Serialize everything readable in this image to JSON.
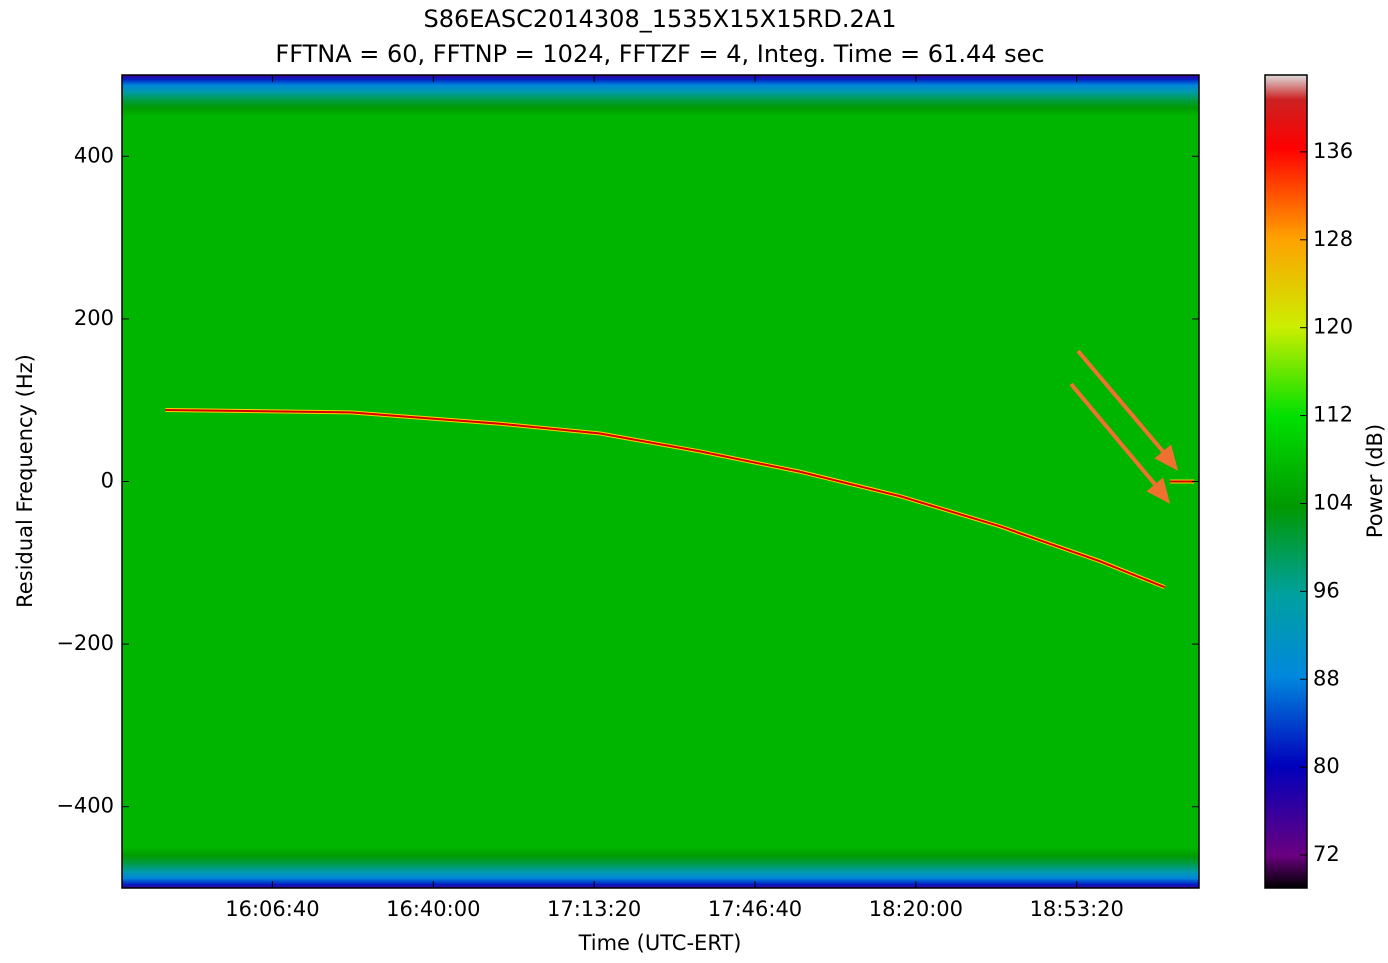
{
  "chart_data": {
    "type": "spectrogram",
    "title": "S86EASC2014308_1535X15X15RD.2A1",
    "subtitle": "FFTNA = 60, FFTNP = 1024, FFTZF = 4, Integ. Time = 61.44 sec",
    "x_label": "Time (UTC-ERT)",
    "y_label": "Residual Frequency (Hz)",
    "colorbar_label": "Power (dB)",
    "xlim": [
      "15:35:30",
      "19:18:40"
    ],
    "xticks": [
      "16:06:40",
      "16:40:00",
      "17:13:20",
      "17:46:40",
      "18:20:00",
      "18:53:20"
    ],
    "ylim": [
      -500,
      500
    ],
    "yticks": [
      {
        "value": -400,
        "label": "−400"
      },
      {
        "value": -200,
        "label": "−200"
      },
      0,
      200,
      400
    ],
    "zlim": [
      69,
      143
    ],
    "zticks": [
      72,
      80,
      88,
      96,
      104,
      112,
      120,
      128,
      136
    ],
    "background_profile": {
      "y": [
        -500,
        -495,
        -488,
        -480,
        -470,
        -460,
        -450,
        450,
        460,
        470,
        480,
        488,
        495,
        500
      ],
      "values": [
        75,
        82,
        88,
        94,
        100,
        104,
        107,
        107,
        104,
        100,
        94,
        88,
        82,
        75
      ]
    },
    "series": [
      {
        "color": "#d40000",
        "x": [
          "15:44:31",
          "16:22:49",
          "16:53:52",
          "17:14:35",
          "17:35:17",
          "17:55:59",
          "18:16:41",
          "18:37:23",
          "18:58:06",
          "19:11:33"
        ],
        "values": [
          88,
          85,
          71,
          59,
          37,
          12,
          -18,
          -55,
          -98,
          -130
        ]
      },
      {
        "color": "#d40000",
        "x": [
          "19:12:40",
          "19:17:40"
        ],
        "values": [
          0,
          0
        ]
      }
    ]
  }
}
